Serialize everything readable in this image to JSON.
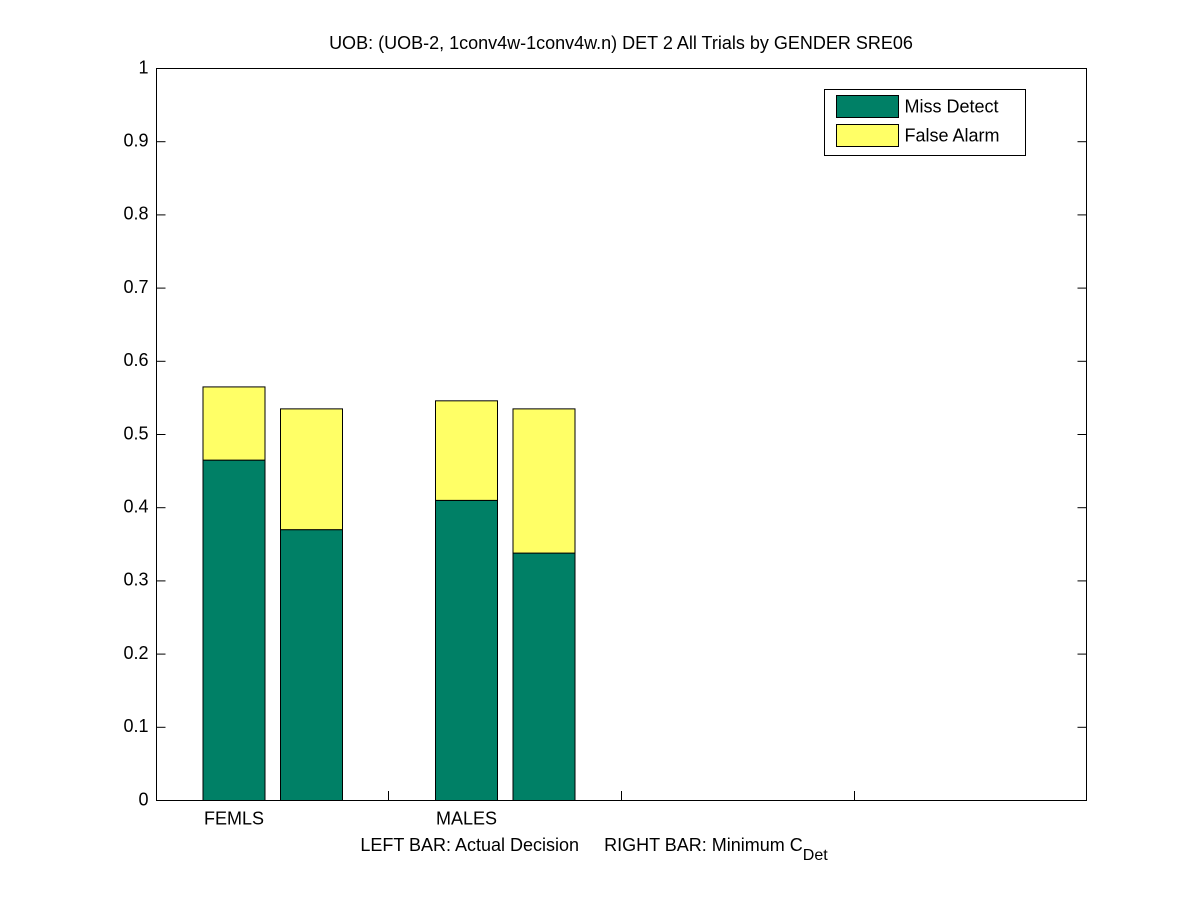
{
  "chart_data": {
    "type": "stacked_bar",
    "title": "UOB: (UOB-2, 1conv4w-1conv4w.n) DET 2 All Trials by GENDER SRE06",
    "x_label": {
      "text": "LEFT BAR: Actual Decision     RIGHT BAR: Minimum C",
      "subscript": "Det"
    },
    "categories": [
      "FEMLS",
      null,
      "MALES",
      null
    ],
    "series": [
      {
        "name": "Miss Detect",
        "color": "#008066",
        "values": [
          0.465,
          0.37,
          0.41,
          0.338
        ]
      },
      {
        "name": "False Alarm",
        "color": "#ffff66",
        "values": [
          0.1,
          0.165,
          0.136,
          0.197
        ]
      }
    ],
    "ylim": [
      0,
      1
    ],
    "yticks": [
      0,
      0.1,
      0.2,
      0.3,
      0.4,
      0.5,
      0.6,
      0.7,
      0.8,
      0.9,
      1
    ],
    "grid": false,
    "legend": "upper right"
  }
}
